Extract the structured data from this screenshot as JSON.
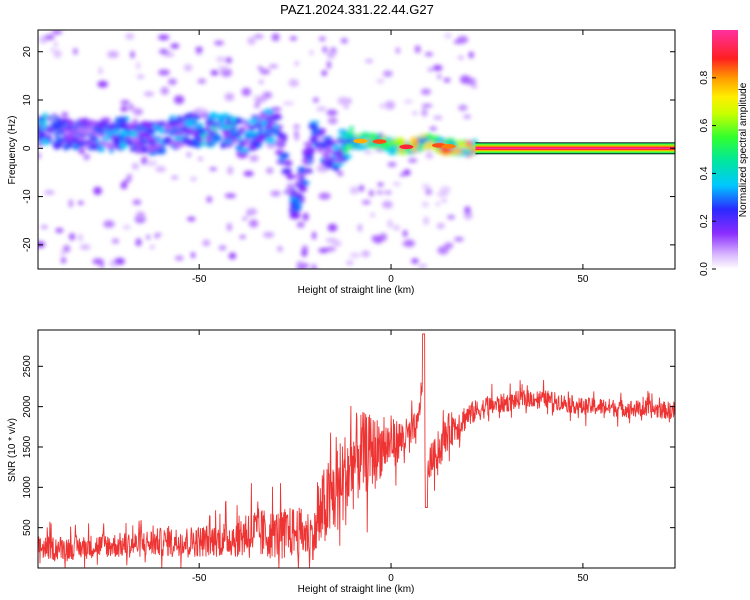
{
  "figure_title": "PAZ1.2024.331.22.44.G27",
  "colors": {
    "snr_line": "#ee3333",
    "frame": "#000000"
  },
  "colorbar": {
    "label": "Normalized spectral amplitude",
    "range": [
      0,
      1
    ],
    "ticks": [
      "0.0",
      "0.2",
      "0.4",
      "0.6",
      "0.8"
    ],
    "colormap": "white-violet-blue-cyan-green-yellow-orange-red-magenta"
  },
  "chart_data": [
    {
      "type": "heatmap",
      "title": "",
      "xlabel": "Height of straight line (km)",
      "ylabel": "Frequency (Hz)",
      "xlim": [
        -92,
        74
      ],
      "ylim": [
        -25,
        24.5
      ],
      "xticks": [
        -50,
        0,
        50
      ],
      "yticks": [
        -20,
        -10,
        0,
        10,
        20
      ],
      "grid": false,
      "description_points": [
        {
          "x": -88,
          "y": 3.5,
          "amp": 0.3
        },
        {
          "x": -80,
          "y": 2.5,
          "amp": 0.25
        },
        {
          "x": -70,
          "y": 3,
          "amp": 0.3
        },
        {
          "x": -62,
          "y": 2,
          "amp": 0.28
        },
        {
          "x": -55,
          "y": 3.5,
          "amp": 0.3
        },
        {
          "x": -45,
          "y": 4,
          "amp": 0.35
        },
        {
          "x": -38,
          "y": 2.5,
          "amp": 0.3
        },
        {
          "x": -30,
          "y": 5,
          "amp": 0.3
        },
        {
          "x": -25,
          "y": -12,
          "amp": 0.2
        },
        {
          "x": -20,
          "y": 2.5,
          "amp": 0.3
        },
        {
          "x": -15,
          "y": -2,
          "amp": 0.25
        },
        {
          "x": -12,
          "y": 1,
          "amp": 0.45
        },
        {
          "x": -8,
          "y": 1.5,
          "amp": 0.55
        },
        {
          "x": -3,
          "y": 1.5,
          "amp": 0.75
        },
        {
          "x": 0,
          "y": 0.5,
          "amp": 0.6
        },
        {
          "x": 5,
          "y": 0.3,
          "amp": 0.85
        },
        {
          "x": 10,
          "y": 1.5,
          "amp": 0.6
        },
        {
          "x": 13,
          "y": 0.5,
          "amp": 0.8
        },
        {
          "x": 18,
          "y": 0,
          "amp": 0.7
        },
        {
          "x": 22,
          "y": 0,
          "amp": 1.0
        },
        {
          "x": 74,
          "y": 0,
          "amp": 1.0
        }
      ]
    },
    {
      "type": "line",
      "title": "",
      "xlabel": "Height of straight line (km)",
      "ylabel": "SNR (10 * v/v)",
      "xlim": [
        -92,
        74
      ],
      "ylim": [
        0,
        2950
      ],
      "xticks": [
        -50,
        0,
        50
      ],
      "yticks": [
        500,
        1000,
        1500,
        2000,
        2500
      ],
      "grid": false,
      "series": [
        {
          "x": [
            -92,
            -85,
            -80,
            -75,
            -70,
            -65,
            -60,
            -55,
            -50,
            -45,
            -40,
            -37,
            -35,
            -30,
            -25,
            -20,
            -18,
            -15,
            -12,
            -10,
            -8,
            -5,
            -2,
            0,
            3,
            5,
            7,
            8.5,
            9,
            10,
            13,
            15,
            18,
            20,
            25,
            30,
            35,
            40,
            45,
            50,
            55,
            60,
            65,
            70,
            74
          ],
          "y": [
            250,
            250,
            260,
            280,
            280,
            300,
            320,
            330,
            330,
            350,
            380,
            450,
            420,
            420,
            450,
            400,
            700,
            900,
            1100,
            1300,
            1400,
            1450,
            1500,
            1550,
            1600,
            1650,
            1750,
            2500,
            900,
            1300,
            1500,
            1700,
            1800,
            1900,
            2000,
            2050,
            2100,
            2100,
            2050,
            2000,
            2000,
            1980,
            1970,
            1960,
            1950
          ],
          "noise": [
            150,
            150,
            150,
            150,
            160,
            170,
            180,
            180,
            200,
            210,
            250,
            350,
            330,
            300,
            320,
            300,
            500,
            550,
            600,
            600,
            550,
            450,
            350,
            300,
            250,
            220,
            200,
            150,
            100,
            200,
            220,
            220,
            200,
            150,
            130,
            120,
            110,
            110,
            110,
            110,
            110,
            110,
            110,
            110,
            110
          ]
        }
      ]
    }
  ]
}
